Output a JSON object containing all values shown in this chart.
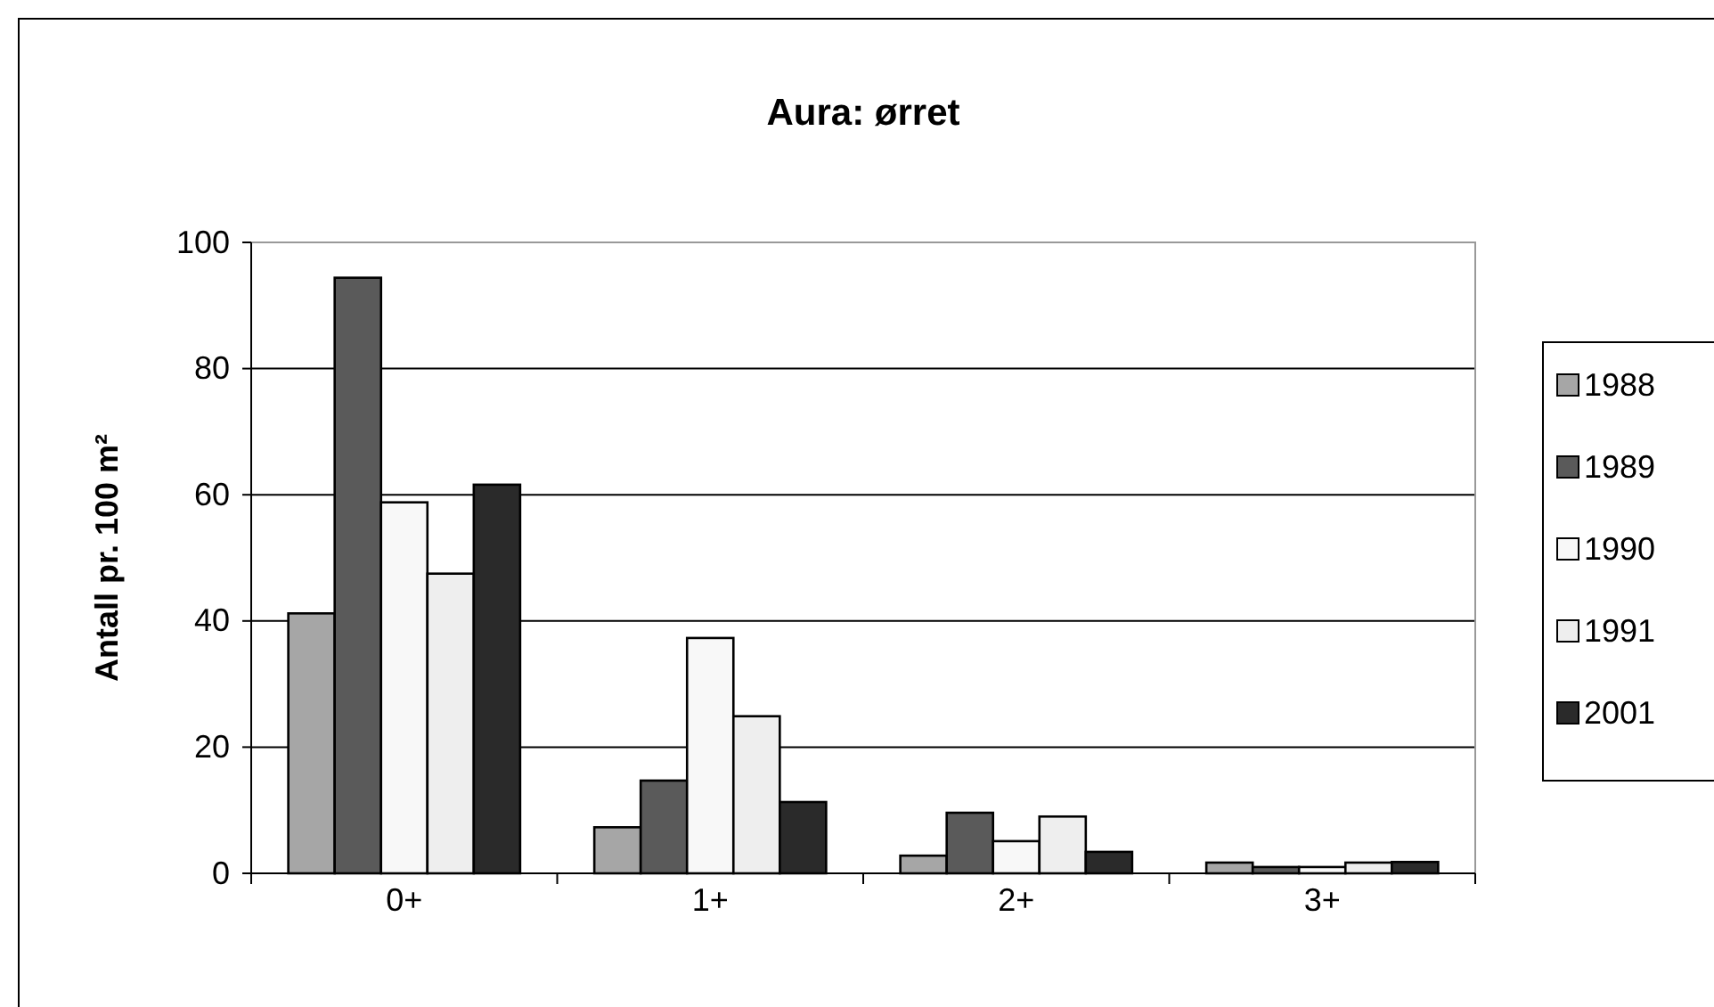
{
  "chart_data": {
    "type": "bar",
    "title": "Aura: ørret",
    "ylabel": "Antall pr. 100 m²",
    "categories": [
      "0+",
      "1+",
      "2+",
      "3+"
    ],
    "series": [
      {
        "name": "1988",
        "color": "#a6a6a6",
        "values": [
          41.2,
          7.3,
          2.8,
          1.7
        ]
      },
      {
        "name": "1989",
        "color": "#5a5a5a",
        "values": [
          94.4,
          14.7,
          9.6,
          1.0
        ]
      },
      {
        "name": "1990",
        "color": "#f8f8f8",
        "values": [
          58.8,
          37.3,
          5.1,
          1.0
        ]
      },
      {
        "name": "1991",
        "color": "#eeeeee",
        "values": [
          47.5,
          24.9,
          9.0,
          1.7
        ]
      },
      {
        "name": "2001",
        "color": "#2a2a2a",
        "values": [
          61.6,
          11.3,
          3.4,
          1.8
        ]
      }
    ],
    "ylim": [
      0,
      100
    ],
    "yticks": [
      0,
      20,
      40,
      60,
      80,
      100
    ],
    "grid": "y",
    "legend": "right"
  }
}
